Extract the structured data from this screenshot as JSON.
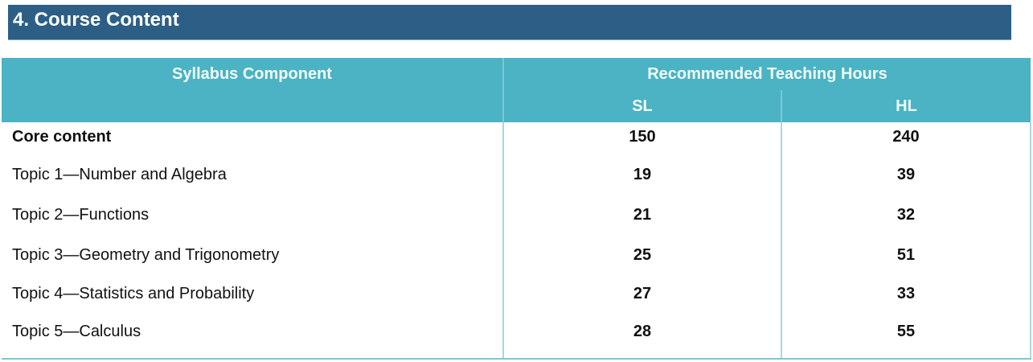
{
  "section_title": "4.  Course Content",
  "table": {
    "col_component": "Syllabus Component",
    "col_hours": "Recommended Teaching Hours",
    "col_sl": "SL",
    "col_hl": "HL",
    "rows": [
      {
        "component": "Core content",
        "sl": "150",
        "hl": "240"
      },
      {
        "component": "Topic 1—Number and Algebra",
        "sl": "19",
        "hl": "39"
      },
      {
        "component": "Topic 2—Functions",
        "sl": "21",
        "hl": "32"
      },
      {
        "component": "Topic 3—Geometry and Trigonometry",
        "sl": "25",
        "hl": "51"
      },
      {
        "component": "Topic 4—Statistics and Probability",
        "sl": "27",
        "hl": "33"
      },
      {
        "component": "Topic 5—Calculus",
        "sl": "28",
        "hl": "55"
      }
    ]
  },
  "colors": {
    "title_bg": "#2d5f86",
    "header_bg": "#4bb3c3"
  }
}
